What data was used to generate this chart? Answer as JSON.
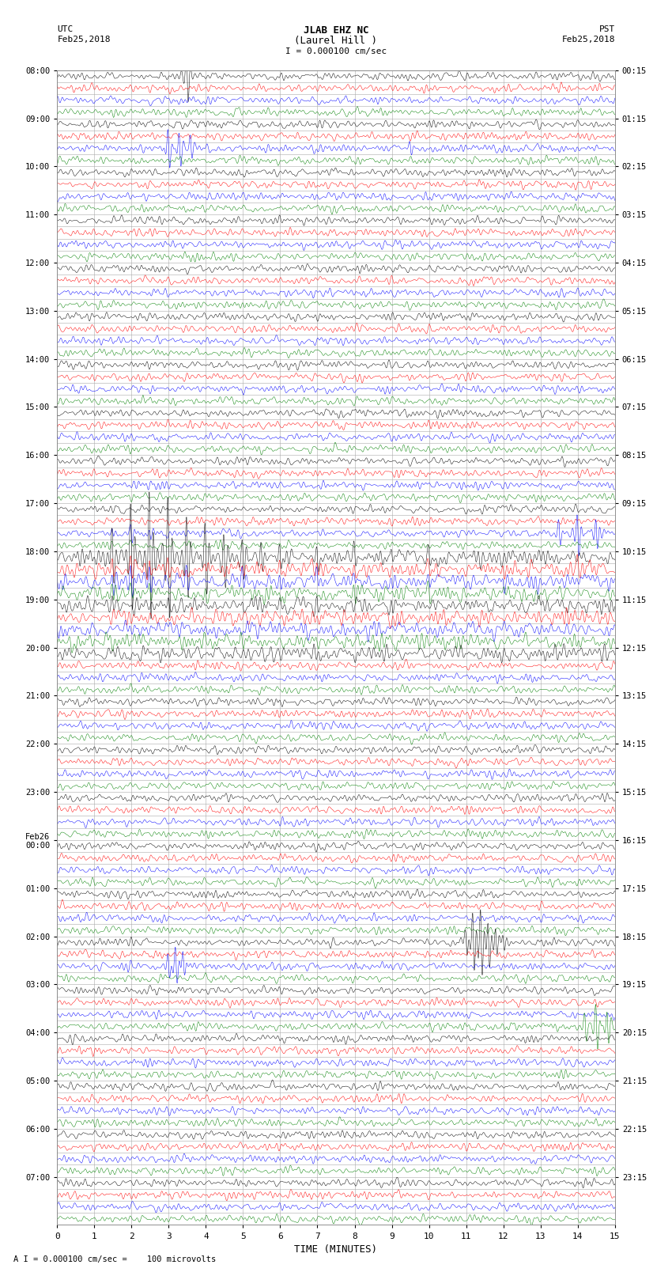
{
  "title_line1": "JLAB EHZ NC",
  "title_line2": "(Laurel Hill )",
  "scale_label": "I = 0.000100 cm/sec",
  "left_label": "UTC",
  "left_date": "Feb25,2018",
  "right_label": "PST",
  "right_date": "Feb25,2018",
  "xlabel": "TIME (MINUTES)",
  "footnote": "A I = 0.000100 cm/sec =    100 microvolts",
  "utc_times_labeled": [
    [
      0,
      "08:00"
    ],
    [
      4,
      "09:00"
    ],
    [
      8,
      "10:00"
    ],
    [
      12,
      "11:00"
    ],
    [
      16,
      "12:00"
    ],
    [
      20,
      "13:00"
    ],
    [
      24,
      "14:00"
    ],
    [
      28,
      "15:00"
    ],
    [
      32,
      "16:00"
    ],
    [
      36,
      "17:00"
    ],
    [
      40,
      "18:00"
    ],
    [
      44,
      "19:00"
    ],
    [
      48,
      "20:00"
    ],
    [
      52,
      "21:00"
    ],
    [
      56,
      "22:00"
    ],
    [
      60,
      "23:00"
    ],
    [
      64,
      "Feb26\n00:00"
    ],
    [
      68,
      "01:00"
    ],
    [
      72,
      "02:00"
    ],
    [
      76,
      "03:00"
    ],
    [
      80,
      "04:00"
    ],
    [
      84,
      "05:00"
    ],
    [
      88,
      "06:00"
    ],
    [
      92,
      "07:00"
    ]
  ],
  "pst_times_labeled": [
    [
      0,
      "00:15"
    ],
    [
      4,
      "01:15"
    ],
    [
      8,
      "02:15"
    ],
    [
      12,
      "03:15"
    ],
    [
      16,
      "04:15"
    ],
    [
      20,
      "05:15"
    ],
    [
      24,
      "06:15"
    ],
    [
      28,
      "07:15"
    ],
    [
      32,
      "08:15"
    ],
    [
      36,
      "09:15"
    ],
    [
      40,
      "10:15"
    ],
    [
      44,
      "11:15"
    ],
    [
      48,
      "12:15"
    ],
    [
      52,
      "13:15"
    ],
    [
      56,
      "14:15"
    ],
    [
      60,
      "15:15"
    ],
    [
      64,
      "16:15"
    ],
    [
      68,
      "17:15"
    ],
    [
      72,
      "18:15"
    ],
    [
      76,
      "19:15"
    ],
    [
      80,
      "20:15"
    ],
    [
      84,
      "21:15"
    ],
    [
      88,
      "22:15"
    ],
    [
      92,
      "23:15"
    ]
  ],
  "n_rows": 96,
  "n_minutes": 15,
  "colors": [
    "black",
    "red",
    "blue",
    "green"
  ],
  "bg_color": "white",
  "grid_color": "#aaaaaa",
  "figsize": [
    8.5,
    16.13
  ],
  "dpi": 100,
  "noise_std": 0.06,
  "event_rows": {
    "0": {
      "times": [
        3.5
      ],
      "amps": [
        3.0
      ],
      "color": "black"
    },
    "6": {
      "times": [
        3.0,
        3.3,
        3.6,
        9.5
      ],
      "amps": [
        2.5,
        2.0,
        1.5,
        0.8
      ],
      "color": "blue"
    },
    "38": {
      "times": [
        1.5,
        2.0,
        2.5,
        13.5,
        14.0,
        14.5
      ],
      "amps": [
        0.6,
        1.0,
        0.6,
        1.5,
        2.5,
        2.0
      ],
      "color": "green"
    },
    "40": {
      "times": [
        1.5,
        2.0,
        2.5,
        3.0,
        3.5,
        4.0,
        4.5,
        5.0,
        5.5,
        6.0,
        7.0,
        8.0,
        9.0,
        10.0
      ],
      "amps": [
        1.5,
        3.0,
        4.0,
        3.5,
        2.5,
        2.0,
        1.5,
        1.2,
        1.0,
        0.8,
        0.7,
        0.6,
        0.5,
        0.4
      ],
      "color": "black"
    },
    "41": {
      "times": [
        1.5,
        2.0,
        2.5,
        3.0,
        4.0,
        5.0,
        6.0,
        7.0,
        8.0,
        10.0,
        12.0,
        14.0
      ],
      "amps": [
        0.5,
        0.8,
        0.6,
        0.4,
        0.4,
        0.3,
        0.3,
        0.3,
        0.3,
        0.3,
        0.3,
        0.3
      ],
      "color": "red"
    },
    "42": {
      "times": [
        1.5,
        2.0,
        2.5,
        3.5,
        5.0,
        6.0,
        7.0,
        8.0,
        9.0,
        10.0,
        12.0
      ],
      "amps": [
        0.6,
        1.0,
        0.8,
        0.6,
        0.5,
        0.4,
        0.4,
        0.4,
        0.4,
        0.4,
        0.4
      ],
      "color": "blue"
    },
    "43": {
      "times": [
        1.5,
        2.5,
        4.0,
        6.0,
        8.0,
        10.0
      ],
      "amps": [
        0.5,
        0.5,
        0.4,
        0.4,
        0.4,
        0.4
      ],
      "color": "green"
    },
    "44": {
      "times": [
        1.5,
        3.0,
        5.0,
        7.0,
        9.0,
        11.0
      ],
      "amps": [
        0.4,
        0.4,
        0.4,
        0.4,
        0.4,
        0.4
      ],
      "color": "black"
    },
    "72": {
      "times": [
        11.0,
        11.2,
        11.4,
        11.6,
        11.8,
        12.0
      ],
      "amps": [
        1.5,
        3.5,
        4.0,
        3.0,
        2.0,
        1.0
      ],
      "color": "red"
    },
    "74": {
      "times": [
        3.0,
        3.2,
        3.4
      ],
      "amps": [
        1.5,
        2.0,
        1.5
      ],
      "color": "blue"
    },
    "79": {
      "times": [
        14.2,
        14.5,
        14.8
      ],
      "amps": [
        1.5,
        2.5,
        2.0
      ],
      "color": "green"
    }
  },
  "elevated_noise_rows": [
    40,
    41,
    42,
    43,
    44,
    45,
    46,
    47,
    48
  ]
}
